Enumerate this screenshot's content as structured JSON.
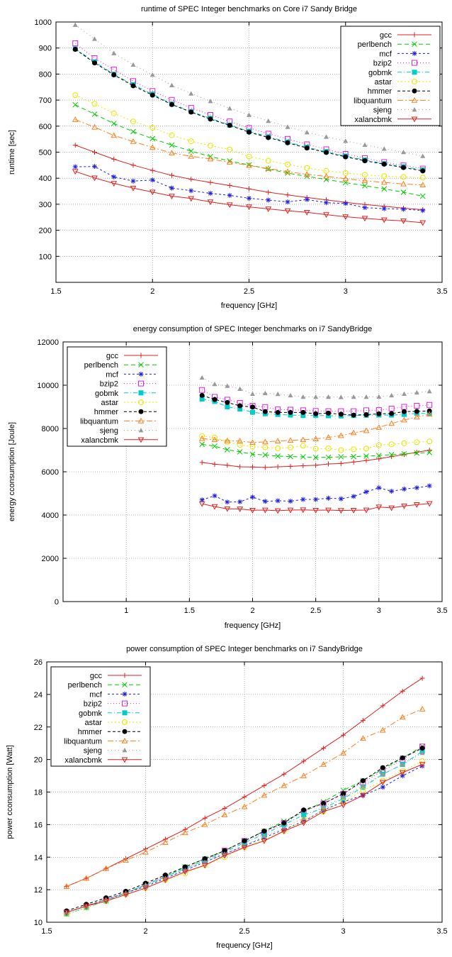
{
  "chart_data": [
    {
      "type": "line",
      "title": "runtime of SPEC Integer benchmarks on Core i7 Sandy Bridge",
      "xlabel": "frequency [GHz]",
      "ylabel": "runtime [sec]",
      "xlim": [
        1.5,
        3.5
      ],
      "ylim": [
        0,
        1000
      ],
      "xticks": [
        "1.5",
        "2",
        "2.5",
        "3",
        "3.5"
      ],
      "xtick_values": [
        1.5,
        2,
        2.5,
        3,
        3.5
      ],
      "yticks": [
        "100",
        "200",
        "300",
        "400",
        "500",
        "600",
        "700",
        "800",
        "900",
        "1000"
      ],
      "ytick_values": [
        100,
        200,
        300,
        400,
        500,
        600,
        700,
        800,
        900,
        1000
      ],
      "grid": true,
      "legend_position": "top-right",
      "x": [
        1.6,
        1.7,
        1.8,
        1.9,
        2.0,
        2.1,
        2.2,
        2.3,
        2.4,
        2.5,
        2.6,
        2.7,
        2.8,
        2.9,
        3.0,
        3.1,
        3.2,
        3.3,
        3.4
      ],
      "series": [
        {
          "name": "gcc",
          "color": "#e02020",
          "marker": "plus",
          "dash": "",
          "values": [
            527,
            500,
            473,
            450,
            430,
            411,
            396,
            384,
            372,
            359,
            346,
            336,
            326,
            317,
            307,
            299,
            292,
            285,
            279
          ]
        },
        {
          "name": "perlbench",
          "color": "#00cc00",
          "marker": "cross",
          "dash": "6,4",
          "values": [
            682,
            646,
            610,
            579,
            552,
            527,
            504,
            483,
            466,
            451,
            435,
            420,
            407,
            395,
            383,
            371,
            359,
            346,
            331
          ]
        },
        {
          "name": "mcf",
          "color": "#2020e0",
          "marker": "star",
          "dash": "3,3",
          "values": [
            444,
            445,
            405,
            389,
            393,
            362,
            352,
            342,
            334,
            323,
            316,
            309,
            318,
            306,
            303,
            287,
            283,
            281,
            276
          ]
        },
        {
          "name": "bzip2",
          "color": "#e020e0",
          "marker": "square-open",
          "dash": "1,3",
          "values": [
            918,
            861,
            817,
            773,
            735,
            701,
            670,
            643,
            618,
            593,
            571,
            551,
            530,
            511,
            493,
            477,
            462,
            449,
            437
          ]
        },
        {
          "name": "gobmk",
          "color": "#00cccc",
          "marker": "square-filled",
          "dash": "6,3,1,3",
          "values": [
            897,
            847,
            799,
            759,
            723,
            685,
            656,
            630,
            604,
            580,
            559,
            539,
            519,
            502,
            485,
            470,
            456,
            444,
            432
          ]
        },
        {
          "name": "astar",
          "color": "#e6e600",
          "marker": "circle-open",
          "dash": "2,3",
          "values": [
            719,
            686,
            649,
            618,
            594,
            565,
            542,
            525,
            510,
            483,
            467,
            453,
            439,
            428,
            420,
            413,
            408,
            405,
            402
          ]
        },
        {
          "name": "hmmer",
          "color": "#000000",
          "marker": "circle-filled",
          "dash": "4,3",
          "values": [
            895,
            843,
            797,
            755,
            719,
            683,
            654,
            627,
            603,
            577,
            556,
            536,
            516,
            499,
            482,
            467,
            454,
            441,
            428
          ]
        },
        {
          "name": "libquantum",
          "color": "#ff7f1e",
          "marker": "triangle-open",
          "dash": "8,3,2,3",
          "values": [
            625,
            596,
            564,
            541,
            518,
            497,
            484,
            474,
            461,
            449,
            437,
            425,
            415,
            407,
            398,
            390,
            384,
            378,
            374
          ]
        },
        {
          "name": "sjeng",
          "color": "#999999",
          "marker": "triangle-filled",
          "dash": "1,4",
          "values": [
            989,
            935,
            880,
            836,
            797,
            757,
            725,
            696,
            668,
            643,
            620,
            597,
            576,
            559,
            543,
            528,
            513,
            500,
            485
          ]
        },
        {
          "name": "xalancbmk",
          "color": "#e02020",
          "marker": "triangle-down-open",
          "dash": "",
          "values": [
            426,
            401,
            380,
            362,
            347,
            331,
            322,
            309,
            298,
            290,
            282,
            275,
            269,
            260,
            252,
            246,
            240,
            236,
            229
          ]
        }
      ]
    },
    {
      "type": "line",
      "title": "energy consumption of SPEC Integer benchmarks on i7 SandyBridge",
      "xlabel": "frequency [GHz]",
      "ylabel": "energy cconsumption [Joule]",
      "xlim": [
        0.5,
        3.5
      ],
      "ylim": [
        0,
        12000
      ],
      "xticks": [
        "1",
        "1.5",
        "2",
        "2.5",
        "3",
        "3.5"
      ],
      "xtick_values": [
        1,
        1.5,
        2,
        2.5,
        3,
        3.5
      ],
      "yticks": [
        "0",
        "2000",
        "4000",
        "6000",
        "8000",
        "10000",
        "12000"
      ],
      "ytick_values": [
        0,
        2000,
        4000,
        6000,
        8000,
        10000,
        12000
      ],
      "grid": true,
      "legend_position": "top-left",
      "x": [
        1.6,
        1.7,
        1.8,
        1.9,
        2.0,
        2.1,
        2.2,
        2.3,
        2.4,
        2.5,
        2.6,
        2.7,
        2.8,
        2.9,
        3.0,
        3.1,
        3.2,
        3.3,
        3.4
      ],
      "series": [
        {
          "name": "gcc",
          "color": "#e02020",
          "marker": "plus",
          "dash": "",
          "values": [
            6430,
            6350,
            6300,
            6230,
            6220,
            6200,
            6230,
            6250,
            6280,
            6300,
            6360,
            6380,
            6450,
            6520,
            6600,
            6700,
            6800,
            6900,
            7000
          ]
        },
        {
          "name": "perlbench",
          "color": "#00cc00",
          "marker": "cross",
          "dash": "6,4",
          "values": [
            7270,
            7180,
            7020,
            6920,
            6810,
            6780,
            6720,
            6700,
            6690,
            6660,
            6670,
            6690,
            6700,
            6720,
            6750,
            6790,
            6830,
            6870,
            6890
          ]
        },
        {
          "name": "mcf",
          "color": "#2020e0",
          "marker": "star",
          "dash": "3,3",
          "values": [
            4700,
            4890,
            4600,
            4610,
            4830,
            4630,
            4660,
            4640,
            4720,
            4720,
            4780,
            4750,
            4860,
            5070,
            5260,
            5100,
            5200,
            5260,
            5350
          ]
        },
        {
          "name": "bzip2",
          "color": "#e020e0",
          "marker": "square-open",
          "dash": "1,3",
          "values": [
            9780,
            9460,
            9330,
            9180,
            9050,
            8990,
            8880,
            8870,
            8840,
            8810,
            8800,
            8800,
            8800,
            8840,
            8850,
            8920,
            9000,
            9050,
            9090
          ]
        },
        {
          "name": "gobmk",
          "color": "#00cccc",
          "marker": "square-filled",
          "dash": "6,3,1,3",
          "values": [
            9360,
            9250,
            9000,
            8900,
            8750,
            8680,
            8650,
            8620,
            8600,
            8600,
            8590,
            8580,
            8600,
            8610,
            8620,
            8620,
            8650,
            8700,
            8700
          ]
        },
        {
          "name": "astar",
          "color": "#e6e600",
          "marker": "circle-open",
          "dash": "2,3",
          "values": [
            7650,
            7580,
            7380,
            7240,
            7160,
            7130,
            7080,
            7120,
            7200,
            7060,
            7080,
            7000,
            7040,
            7070,
            7230,
            7270,
            7320,
            7370,
            7400
          ]
        },
        {
          "name": "hmmer",
          "color": "#000000",
          "marker": "circle-filled",
          "dash": "4,3",
          "values": [
            9530,
            9340,
            9200,
            9050,
            8990,
            8780,
            8740,
            8740,
            8740,
            8680,
            8710,
            8660,
            8620,
            8640,
            8680,
            8690,
            8780,
            8790,
            8810
          ]
        },
        {
          "name": "libquantum",
          "color": "#ff7f1e",
          "marker": "triangle-open",
          "dash": "8,3,2,3",
          "values": [
            7530,
            7480,
            7430,
            7420,
            7350,
            7380,
            7420,
            7450,
            7480,
            7520,
            7590,
            7670,
            7800,
            7900,
            8050,
            8230,
            8390,
            8530,
            8660
          ]
        },
        {
          "name": "sjeng",
          "color": "#999999",
          "marker": "triangle-filled",
          "dash": "1,4",
          "values": [
            10350,
            10050,
            9970,
            9830,
            9600,
            9630,
            9590,
            9530,
            9460,
            9460,
            9460,
            9450,
            9460,
            9460,
            9470,
            9530,
            9600,
            9660,
            9720
          ]
        },
        {
          "name": "xalancbmk",
          "color": "#e02020",
          "marker": "triangle-down-open",
          "dash": "",
          "values": [
            4520,
            4390,
            4290,
            4280,
            4220,
            4230,
            4200,
            4230,
            4240,
            4220,
            4230,
            4210,
            4220,
            4230,
            4370,
            4330,
            4420,
            4480,
            4530
          ]
        }
      ]
    },
    {
      "type": "line",
      "title": "power consumption of SPEC Integer benchmarks on i7 SandyBridge",
      "xlabel": "frequency [GHz]",
      "ylabel": "power cconsumption [Watt]",
      "xlim": [
        1.5,
        3.5
      ],
      "ylim": [
        10,
        26
      ],
      "xticks": [
        "1.5",
        "2",
        "2.5",
        "3",
        "3.5"
      ],
      "xtick_values": [
        1.5,
        2,
        2.5,
        3,
        3.5
      ],
      "yticks": [
        "10",
        "12",
        "14",
        "16",
        "18",
        "20",
        "22",
        "24",
        "26"
      ],
      "ytick_values": [
        10,
        12,
        14,
        16,
        18,
        20,
        22,
        24,
        26
      ],
      "grid": true,
      "legend_position": "top-left",
      "x": [
        1.6,
        1.7,
        1.8,
        1.9,
        2.0,
        2.1,
        2.2,
        2.3,
        2.4,
        2.5,
        2.6,
        2.7,
        2.8,
        2.9,
        3.0,
        3.1,
        3.2,
        3.3,
        3.4
      ],
      "series": [
        {
          "name": "gcc",
          "color": "#e02020",
          "marker": "plus",
          "dash": "",
          "values": [
            12.2,
            12.7,
            13.3,
            13.9,
            14.5,
            15.1,
            15.7,
            16.4,
            17.0,
            17.7,
            18.4,
            19.1,
            19.9,
            20.7,
            21.5,
            22.4,
            23.3,
            24.2,
            25.0
          ]
        },
        {
          "name": "perlbench",
          "color": "#00cc00",
          "marker": "cross",
          "dash": "6,4",
          "values": [
            10.6,
            11.0,
            11.4,
            11.8,
            12.3,
            12.8,
            13.4,
            13.9,
            14.4,
            15.0,
            15.6,
            16.2,
            16.8,
            17.4,
            18.1,
            18.7,
            19.4,
            20.1,
            20.8
          ]
        },
        {
          "name": "mcf",
          "color": "#2020e0",
          "marker": "star",
          "dash": "3,3",
          "values": [
            10.6,
            11.0,
            11.4,
            11.8,
            12.2,
            12.7,
            13.2,
            13.7,
            14.2,
            14.7,
            15.2,
            15.7,
            16.2,
            16.9,
            17.4,
            17.8,
            18.3,
            19.0,
            19.6
          ]
        },
        {
          "name": "bzip2",
          "color": "#e020e0",
          "marker": "square-open",
          "dash": "1,3",
          "values": [
            10.6,
            11.0,
            11.4,
            11.8,
            12.3,
            12.8,
            13.3,
            13.8,
            14.4,
            15.0,
            15.5,
            16.1,
            16.8,
            17.3,
            17.9,
            18.6,
            19.3,
            20.0,
            20.8
          ]
        },
        {
          "name": "gobmk",
          "color": "#00cccc",
          "marker": "square-filled",
          "dash": "6,3,1,3",
          "values": [
            10.5,
            10.9,
            11.3,
            11.8,
            12.3,
            12.8,
            13.3,
            13.8,
            14.3,
            14.9,
            15.4,
            16.0,
            16.6,
            17.0,
            17.6,
            18.3,
            19.1,
            19.7,
            20.5
          ]
        },
        {
          "name": "astar",
          "color": "#e6e600",
          "marker": "circle-open",
          "dash": "2,3",
          "values": [
            10.5,
            10.9,
            11.3,
            11.7,
            12.1,
            12.6,
            13.0,
            13.5,
            14.0,
            14.6,
            15.1,
            15.6,
            16.3,
            16.8,
            17.4,
            18.1,
            18.7,
            19.3,
            19.9
          ]
        },
        {
          "name": "hmmer",
          "color": "#000000",
          "marker": "circle-filled",
          "dash": "4,3",
          "values": [
            10.7,
            11.1,
            11.5,
            11.9,
            12.4,
            12.9,
            13.4,
            13.9,
            14.4,
            15.0,
            15.6,
            16.1,
            16.9,
            17.3,
            17.9,
            18.7,
            19.5,
            20.1,
            20.7
          ]
        },
        {
          "name": "libquantum",
          "color": "#ff7f1e",
          "marker": "triangle-open",
          "dash": "8,3,2,3",
          "values": [
            12.2,
            12.7,
            13.3,
            13.8,
            14.3,
            14.9,
            15.5,
            16.0,
            16.6,
            17.1,
            17.8,
            18.4,
            19.0,
            19.7,
            20.4,
            21.3,
            21.8,
            22.6,
            23.1
          ]
        },
        {
          "name": "sjeng",
          "color": "#999999",
          "marker": "triangle-filled",
          "dash": "1,4",
          "values": [
            10.6,
            11.0,
            11.4,
            11.8,
            12.3,
            12.7,
            13.2,
            13.7,
            14.2,
            14.7,
            15.3,
            15.8,
            16.4,
            17.1,
            17.7,
            18.4,
            19.1,
            19.7,
            20.4
          ]
        },
        {
          "name": "xalancbmk",
          "color": "#e02020",
          "marker": "triangle-down-open",
          "dash": "",
          "values": [
            10.6,
            11.0,
            11.3,
            11.7,
            12.1,
            12.6,
            13.1,
            13.5,
            14.1,
            14.6,
            15.0,
            15.6,
            16.1,
            16.8,
            17.2,
            17.8,
            18.6,
            19.2,
            19.7
          ]
        }
      ]
    }
  ]
}
